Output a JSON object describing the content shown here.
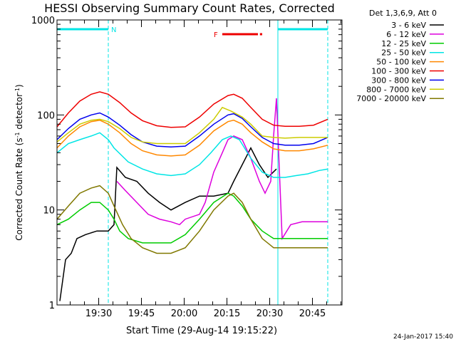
{
  "chart_data": {
    "type": "line",
    "title": "HESSI Observing Summary Count Rates, Corrected",
    "ylabel_parts": {
      "pre": "Corrected Count Rate (s",
      "sup1": "-1",
      "mid": " detector",
      "sup2": "-1",
      "post": ")"
    },
    "xlabel": "Start Time (29-Aug-14 19:15:22)",
    "footer_date": "24-Jan-2017 15:40",
    "y_scale": "log",
    "ylim": [
      1,
      1000
    ],
    "xlim_minutes": [
      0,
      100
    ],
    "y_ticks": [
      {
        "v": 1,
        "label": "1"
      },
      {
        "v": 10,
        "label": "10"
      },
      {
        "v": 100,
        "label": "100"
      },
      {
        "v": 1000,
        "label": "1000"
      }
    ],
    "x_ticks": [
      {
        "m": 14.63,
        "label": "19:30"
      },
      {
        "m": 29.63,
        "label": "19:45"
      },
      {
        "m": 44.63,
        "label": "20:00"
      },
      {
        "m": 59.63,
        "label": "20:15"
      },
      {
        "m": 74.63,
        "label": "20:30"
      },
      {
        "m": 89.63,
        "label": "20:45"
      }
    ],
    "night_marker_label": "N",
    "flare_marker_label": "F",
    "night_intervals_minutes": [
      [
        0,
        18
      ],
      [
        77.5,
        95
      ]
    ],
    "flare_interval_minutes": [
      58,
      72
    ],
    "legend_header": "Det 1,3,6,9, Att 0",
    "series": [
      {
        "name": "3 - 6 keV",
        "color": "#000000",
        "points": [
          [
            1,
            1.1
          ],
          [
            3,
            3
          ],
          [
            5,
            3.5
          ],
          [
            7,
            5
          ],
          [
            10,
            5.5
          ],
          [
            14,
            6
          ],
          [
            18,
            6
          ],
          [
            20,
            7
          ],
          [
            21,
            28
          ],
          [
            24,
            22
          ],
          [
            28,
            20
          ],
          [
            32,
            15
          ],
          [
            36,
            12
          ],
          [
            40,
            10
          ],
          [
            45,
            12
          ],
          [
            50,
            14
          ],
          [
            55,
            14
          ],
          [
            60,
            15
          ],
          [
            62,
            20
          ],
          [
            65,
            30
          ],
          [
            68,
            45
          ],
          [
            71,
            30
          ],
          [
            74,
            22
          ],
          [
            77,
            27
          ]
        ]
      },
      {
        "name": "6 - 12 keV",
        "color": "#dd00dd",
        "points": [
          [
            21,
            20
          ],
          [
            24,
            16
          ],
          [
            28,
            12
          ],
          [
            32,
            9
          ],
          [
            36,
            8
          ],
          [
            40,
            7.5
          ],
          [
            43,
            7
          ],
          [
            45,
            8
          ],
          [
            50,
            9
          ],
          [
            52,
            12
          ],
          [
            55,
            25
          ],
          [
            58,
            40
          ],
          [
            60,
            55
          ],
          [
            62,
            60
          ],
          [
            65,
            55
          ],
          [
            68,
            35
          ],
          [
            71,
            20
          ],
          [
            73,
            15
          ],
          [
            75,
            20
          ],
          [
            76,
            60
          ],
          [
            77,
            150
          ],
          [
            79,
            5
          ],
          [
            82,
            7
          ],
          [
            86,
            7.5
          ],
          [
            90,
            7.5
          ],
          [
            95,
            7.5
          ]
        ]
      },
      {
        "name": "12 - 25 keV",
        "color": "#00cc00",
        "points": [
          [
            0,
            7
          ],
          [
            4,
            8
          ],
          [
            8,
            10
          ],
          [
            12,
            12
          ],
          [
            15,
            12
          ],
          [
            18,
            10
          ],
          [
            20,
            8
          ],
          [
            22,
            6
          ],
          [
            25,
            5
          ],
          [
            30,
            4.5
          ],
          [
            35,
            4.5
          ],
          [
            40,
            4.5
          ],
          [
            45,
            5.5
          ],
          [
            50,
            8
          ],
          [
            55,
            12
          ],
          [
            60,
            15
          ],
          [
            62,
            14
          ],
          [
            65,
            11
          ],
          [
            68,
            8
          ],
          [
            72,
            6
          ],
          [
            76,
            5
          ],
          [
            80,
            5
          ],
          [
            85,
            5
          ],
          [
            90,
            5
          ],
          [
            95,
            5
          ]
        ]
      },
      {
        "name": "25 - 50 keV",
        "color": "#00e5e5",
        "points": [
          [
            0,
            40
          ],
          [
            4,
            50
          ],
          [
            8,
            55
          ],
          [
            12,
            60
          ],
          [
            15,
            65
          ],
          [
            18,
            55
          ],
          [
            20,
            45
          ],
          [
            25,
            32
          ],
          [
            30,
            27
          ],
          [
            35,
            24
          ],
          [
            40,
            23
          ],
          [
            45,
            24
          ],
          [
            50,
            30
          ],
          [
            54,
            40
          ],
          [
            58,
            55
          ],
          [
            61,
            60
          ],
          [
            64,
            55
          ],
          [
            68,
            35
          ],
          [
            72,
            25
          ],
          [
            76,
            22
          ],
          [
            80,
            22
          ],
          [
            84,
            23
          ],
          [
            88,
            24
          ],
          [
            92,
            26
          ],
          [
            95,
            27
          ]
        ]
      },
      {
        "name": "50 - 100 keV",
        "color": "#ff8800",
        "points": [
          [
            0,
            45
          ],
          [
            4,
            60
          ],
          [
            8,
            75
          ],
          [
            12,
            85
          ],
          [
            15,
            88
          ],
          [
            18,
            80
          ],
          [
            22,
            65
          ],
          [
            26,
            50
          ],
          [
            30,
            42
          ],
          [
            35,
            38
          ],
          [
            40,
            37
          ],
          [
            45,
            38
          ],
          [
            50,
            48
          ],
          [
            55,
            68
          ],
          [
            60,
            85
          ],
          [
            62,
            88
          ],
          [
            65,
            80
          ],
          [
            68,
            65
          ],
          [
            72,
            52
          ],
          [
            76,
            44
          ],
          [
            80,
            42
          ],
          [
            85,
            42
          ],
          [
            90,
            44
          ],
          [
            95,
            48
          ]
        ]
      },
      {
        "name": "100 - 300 keV",
        "color": "#ee0000",
        "points": [
          [
            0,
            75
          ],
          [
            4,
            105
          ],
          [
            8,
            140
          ],
          [
            12,
            165
          ],
          [
            15,
            175
          ],
          [
            18,
            165
          ],
          [
            22,
            135
          ],
          [
            26,
            105
          ],
          [
            30,
            87
          ],
          [
            35,
            77
          ],
          [
            40,
            74
          ],
          [
            45,
            75
          ],
          [
            50,
            95
          ],
          [
            55,
            130
          ],
          [
            60,
            160
          ],
          [
            62,
            165
          ],
          [
            65,
            150
          ],
          [
            68,
            120
          ],
          [
            72,
            90
          ],
          [
            76,
            78
          ],
          [
            80,
            76
          ],
          [
            85,
            76
          ],
          [
            90,
            78
          ],
          [
            95,
            90
          ]
        ]
      },
      {
        "name": "300 - 800 keV",
        "color": "#0000ee",
        "points": [
          [
            0,
            55
          ],
          [
            4,
            72
          ],
          [
            8,
            90
          ],
          [
            12,
            100
          ],
          [
            15,
            105
          ],
          [
            18,
            95
          ],
          [
            22,
            78
          ],
          [
            26,
            62
          ],
          [
            30,
            52
          ],
          [
            35,
            47
          ],
          [
            40,
            46
          ],
          [
            45,
            47
          ],
          [
            50,
            60
          ],
          [
            55,
            80
          ],
          [
            60,
            100
          ],
          [
            62,
            103
          ],
          [
            65,
            92
          ],
          [
            68,
            75
          ],
          [
            72,
            58
          ],
          [
            76,
            50
          ],
          [
            80,
            48
          ],
          [
            85,
            48
          ],
          [
            90,
            50
          ],
          [
            95,
            58
          ]
        ]
      },
      {
        "name": "800 - 7000 keV",
        "color": "#cccc00",
        "points": [
          [
            0,
            52
          ],
          [
            4,
            65
          ],
          [
            8,
            80
          ],
          [
            12,
            88
          ],
          [
            15,
            90
          ],
          [
            18,
            85
          ],
          [
            22,
            72
          ],
          [
            26,
            58
          ],
          [
            30,
            52
          ],
          [
            35,
            50
          ],
          [
            40,
            50
          ],
          [
            45,
            50
          ],
          [
            50,
            65
          ],
          [
            55,
            90
          ],
          [
            58,
            120
          ],
          [
            61,
            110
          ],
          [
            65,
            95
          ],
          [
            68,
            80
          ],
          [
            72,
            60
          ],
          [
            76,
            58
          ],
          [
            80,
            57
          ],
          [
            85,
            58
          ],
          [
            90,
            58
          ],
          [
            95,
            58
          ]
        ]
      },
      {
        "name": "7000 - 20000 keV",
        "color": "#807800",
        "points": [
          [
            0,
            8
          ],
          [
            4,
            11
          ],
          [
            8,
            15
          ],
          [
            12,
            17
          ],
          [
            15,
            18
          ],
          [
            18,
            15
          ],
          [
            20,
            11
          ],
          [
            23,
            7
          ],
          [
            26,
            5
          ],
          [
            30,
            4
          ],
          [
            35,
            3.5
          ],
          [
            40,
            3.5
          ],
          [
            45,
            4
          ],
          [
            50,
            6
          ],
          [
            55,
            10
          ],
          [
            60,
            14
          ],
          [
            62,
            15
          ],
          [
            65,
            12
          ],
          [
            68,
            8
          ],
          [
            72,
            5
          ],
          [
            76,
            4
          ],
          [
            80,
            4
          ],
          [
            85,
            4
          ],
          [
            90,
            4
          ],
          [
            95,
            4
          ]
        ]
      }
    ]
  }
}
